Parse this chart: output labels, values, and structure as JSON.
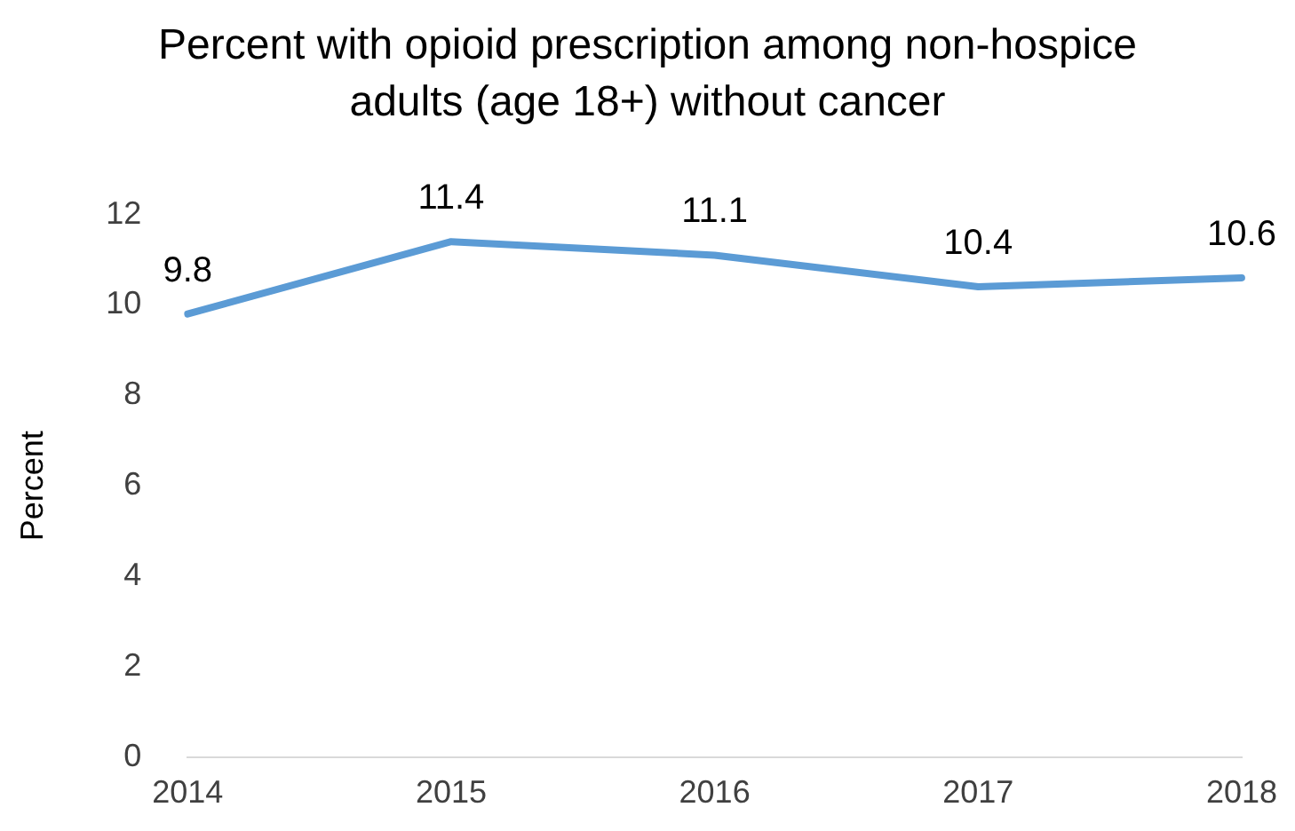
{
  "chart_data": {
    "type": "line",
    "title": "Percent with opioid prescription among non-hospice adults (age 18+) without cancer",
    "ylabel": "Percent",
    "categories": [
      "2014",
      "2015",
      "2016",
      "2017",
      "2018"
    ],
    "series": [
      {
        "color": "#5b9bd5",
        "values": [
          9.8,
          11.4,
          11.1,
          10.4,
          10.6
        ]
      }
    ],
    "ylim": [
      0,
      12
    ],
    "yticks": [
      0,
      2,
      4,
      6,
      8,
      10,
      12
    ],
    "grid": false,
    "legend": false,
    "data_labels": true,
    "marker": "none",
    "line_style": "solid"
  }
}
